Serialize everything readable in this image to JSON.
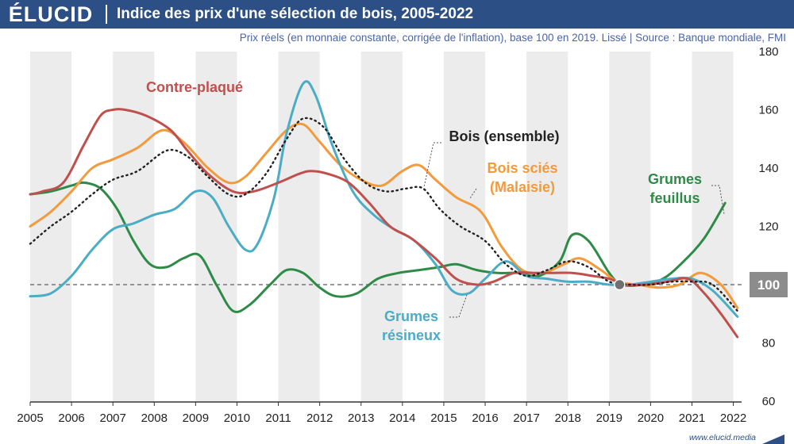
{
  "header": {
    "logo": "ÉLUCID",
    "title": "Indice des prix d'une sélection de bois, 2005-2022",
    "subtitle": "Prix réels (en monnaie constante, corrigée de l'inflation), base 100 en 2019. Lissé  |  Source : Banque mondiale, FMI"
  },
  "footer": {
    "url": "www.elucid.media"
  },
  "colors": {
    "header_bg": "#2c4f86",
    "contre_plaque": "#c0504d",
    "bois_ensemble": "#222222",
    "bois_scies": "#f39a3c",
    "grumes_feuillus": "#2e8b47",
    "grumes_resineux": "#4bacc6",
    "reference": "#777777",
    "band": "#ececec"
  },
  "chart_data": {
    "type": "line",
    "x_ticks": [
      "2005",
      "2006",
      "2007",
      "2008",
      "2009",
      "2010",
      "2011",
      "2012",
      "2013",
      "2014",
      "2015",
      "2016",
      "2017",
      "2018",
      "2019",
      "2020",
      "2021",
      "2022"
    ],
    "y_ticks": [
      "60",
      "80",
      "100",
      "120",
      "140",
      "160",
      "180"
    ],
    "xlim": [
      2005,
      2022.2
    ],
    "ylim": [
      60,
      180
    ],
    "reference_line": {
      "y": 100,
      "label": "100"
    },
    "base_point": {
      "x": 2019.25,
      "y": 100
    },
    "series": [
      {
        "name": "Contre-plaqué",
        "key": "contre_plaque",
        "dash": "",
        "label_lines": [
          "Contre-plaqué"
        ],
        "x": [
          2005,
          2005.3,
          2005.8,
          2006.3,
          2006.7,
          2007.0,
          2007.3,
          2007.8,
          2008.4,
          2008.8,
          2009.3,
          2009.9,
          2010.4,
          2011.0,
          2011.5,
          2011.8,
          2012.2,
          2012.7,
          2013.2,
          2013.7,
          2014.2,
          2014.8,
          2015.3,
          2015.8,
          2016.2,
          2016.7,
          2017.2,
          2017.6,
          2018.1,
          2018.6,
          2019.0,
          2019.4,
          2019.9,
          2020.4,
          2020.9,
          2021.3,
          2021.7,
          2022.1
        ],
        "y": [
          131,
          132,
          135,
          148,
          158,
          160,
          160,
          158,
          153,
          146,
          138,
          132,
          132,
          135,
          138,
          139,
          138,
          135,
          128,
          120,
          116,
          109,
          102,
          100,
          101,
          104,
          104,
          104,
          104,
          103,
          102,
          100,
          100,
          101,
          102,
          97,
          90,
          82
        ]
      },
      {
        "name": "Bois (ensemble)",
        "key": "bois_ensemble",
        "dash": "1.5 4.5",
        "label_lines": [
          "Bois (ensemble)"
        ],
        "x": [
          2005,
          2005.5,
          2006.0,
          2006.5,
          2007.0,
          2007.6,
          2008.3,
          2008.8,
          2009.3,
          2009.8,
          2010.2,
          2010.7,
          2011.2,
          2011.6,
          2012.1,
          2012.6,
          2013.1,
          2013.6,
          2014.1,
          2014.5,
          2014.9,
          2015.4,
          2016.0,
          2016.5,
          2017.0,
          2017.5,
          2018.0,
          2018.5,
          2019.0,
          2019.5,
          2020.0,
          2020.5,
          2021.0,
          2021.5,
          2022.1
        ],
        "y": [
          114,
          120,
          125,
          131,
          136,
          139,
          146,
          144,
          137,
          131,
          131,
          138,
          150,
          157,
          154,
          143,
          135,
          132,
          133,
          133,
          126,
          120,
          115,
          107,
          103,
          105,
          108,
          106,
          101,
          100,
          100,
          101,
          101,
          100,
          91
        ]
      },
      {
        "name": "Bois sciés (Malaisie)",
        "key": "bois_scies",
        "dash": "",
        "label_lines": [
          "Bois sciés",
          "(Malaisie)"
        ],
        "x": [
          2005,
          2005.5,
          2006.0,
          2006.5,
          2007.0,
          2007.6,
          2008.2,
          2008.7,
          2009.3,
          2009.8,
          2010.2,
          2010.7,
          2011.2,
          2011.6,
          2012.0,
          2012.5,
          2013.0,
          2013.5,
          2014.0,
          2014.4,
          2014.8,
          2015.3,
          2015.9,
          2016.4,
          2016.9,
          2017.4,
          2017.9,
          2018.3,
          2018.8,
          2019.2,
          2019.7,
          2020.2,
          2020.7,
          2021.2,
          2021.7,
          2022.1
        ],
        "y": [
          120,
          125,
          132,
          140,
          143,
          147,
          153,
          149,
          140,
          135,
          137,
          145,
          153,
          155,
          149,
          141,
          136,
          134,
          139,
          141,
          136,
          130,
          125,
          113,
          105,
          104,
          107,
          109,
          105,
          101,
          100,
          99,
          100,
          104,
          100,
          92
        ]
      },
      {
        "name": "Grumes feuillus",
        "key": "grumes_feuillus",
        "dash": "",
        "label_lines": [
          "Grumes",
          "feuillus"
        ],
        "x": [
          2005,
          2005.5,
          2006.0,
          2006.3,
          2006.7,
          2007.1,
          2007.5,
          2007.9,
          2008.3,
          2008.7,
          2009.1,
          2009.5,
          2009.9,
          2010.3,
          2010.8,
          2011.2,
          2011.6,
          2012.0,
          2012.4,
          2012.9,
          2013.4,
          2013.9,
          2014.4,
          2014.9,
          2015.3,
          2015.8,
          2016.3,
          2016.8,
          2017.3,
          2017.8,
          2018.1,
          2018.5,
          2019.0,
          2019.3,
          2019.8,
          2020.3,
          2020.8,
          2021.3,
          2021.8
        ],
        "y": [
          131,
          132,
          134,
          135,
          133,
          126,
          115,
          107,
          106,
          109,
          110,
          100,
          91,
          93,
          100,
          105,
          104,
          99,
          96,
          97,
          102,
          104,
          105,
          106,
          107,
          105,
          104,
          104,
          103,
          108,
          117,
          115,
          104,
          100,
          100,
          102,
          108,
          116,
          128
        ]
      },
      {
        "name": "Grumes résineux",
        "key": "grumes_resineux",
        "dash": "",
        "label_lines": [
          "Grumes",
          "résineux"
        ],
        "x": [
          2005,
          2005.5,
          2006.0,
          2006.5,
          2007.0,
          2007.5,
          2008.0,
          2008.5,
          2009.0,
          2009.4,
          2009.8,
          2010.2,
          2010.5,
          2010.9,
          2011.2,
          2011.6,
          2011.9,
          2012.3,
          2012.8,
          2013.3,
          2013.8,
          2014.3,
          2014.8,
          2015.2,
          2015.6,
          2016.0,
          2016.5,
          2017.0,
          2017.5,
          2018.0,
          2018.5,
          2019.0,
          2019.5,
          2020.0,
          2020.5,
          2021.0,
          2021.5,
          2022.1
        ],
        "y": [
          96,
          97,
          103,
          112,
          119,
          121,
          124,
          126,
          132,
          130,
          120,
          112,
          114,
          130,
          152,
          169,
          165,
          148,
          132,
          124,
          119,
          115,
          107,
          98,
          97,
          102,
          108,
          103,
          102,
          101,
          101,
          100,
          100,
          101,
          102,
          102,
          98,
          89
        ]
      }
    ]
  }
}
